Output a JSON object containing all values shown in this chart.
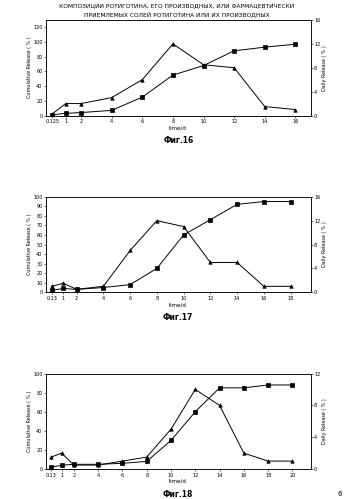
{
  "title_line1": "КОМПОЗИЦИИ РОТИГОТИНА, ЕГО ПРОИЗВОДНЫХ, ИЛИ ФАРМАЦЕВТИЧЕСКИ",
  "title_line2": "ПРИЕМЛЕМЫХ СОЛЕЙ РОТИГОТИНА ИЛИ ИХ ПРОИЗВОДНЫХ",
  "page_number": "6",
  "charts": [
    {
      "fig_label": "Фиг.16",
      "xlabel": "time/d",
      "ylabel_left": "Cumulative Release ( % )",
      "ylabel_right": "Daily Release ( % )",
      "xticks": [
        0.125,
        1,
        2,
        4,
        6,
        8,
        10,
        12,
        14,
        16
      ],
      "xtick_labels": [
        "0.125",
        "1",
        "2",
        "4",
        "6",
        "8",
        "10",
        "12",
        "14",
        "16"
      ],
      "xlim": [
        -0.3,
        17.0
      ],
      "ylim_left": [
        0,
        130
      ],
      "ylim_right": [
        0,
        16
      ],
      "yticks_left": [
        0,
        20,
        40,
        60,
        80,
        100,
        120
      ],
      "yticks_right": [
        0,
        4,
        8,
        12,
        16
      ],
      "cumulative_x": [
        0.125,
        1,
        2,
        4,
        6,
        8,
        10,
        12,
        14,
        16
      ],
      "cumulative_y": [
        1,
        3,
        4,
        7,
        25,
        55,
        68,
        88,
        93,
        97
      ],
      "daily_x": [
        0.125,
        1,
        2,
        4,
        6,
        8,
        10,
        12,
        14,
        16
      ],
      "daily_y": [
        0.3,
        2,
        2,
        3,
        6,
        12,
        8.5,
        8,
        1.5,
        1
      ]
    },
    {
      "fig_label": "Фиг.17",
      "xlabel": "time/d",
      "ylabel_left": "Cumulative Release ( % )",
      "ylabel_right": "Daily Release ( % )",
      "xticks": [
        0.13,
        1,
        2,
        4,
        6,
        8,
        10,
        12,
        14,
        16,
        18
      ],
      "xtick_labels": [
        "0.13",
        "1",
        "2",
        "4",
        "6",
        "8",
        "10",
        "12",
        "14",
        "16",
        "18"
      ],
      "xlim": [
        -0.3,
        19.5
      ],
      "ylim_left": [
        0,
        100
      ],
      "ylim_right": [
        0,
        16
      ],
      "yticks_left": [
        0,
        10,
        20,
        30,
        40,
        50,
        60,
        70,
        80,
        90,
        100
      ],
      "yticks_right": [
        0,
        4,
        8,
        12,
        16
      ],
      "cumulative_x": [
        0.13,
        1,
        2,
        4,
        6,
        8,
        10,
        12,
        14,
        16,
        18
      ],
      "cumulative_y": [
        2,
        4,
        3,
        5,
        8,
        25,
        60,
        76,
        92,
        95,
        95
      ],
      "daily_x": [
        0.13,
        1,
        2,
        4,
        6,
        8,
        10,
        12,
        14,
        16,
        18
      ],
      "daily_y": [
        1,
        1.5,
        0.5,
        1,
        7,
        12,
        11,
        5,
        5,
        1,
        1
      ]
    },
    {
      "fig_label": "Фиг.18",
      "xlabel": "time/d",
      "ylabel_left": "Cumulative Release ( % )",
      "ylabel_right": "Daily Release ( % )",
      "xticks": [
        0.13,
        1,
        2,
        4,
        6,
        8,
        10,
        12,
        14,
        16,
        18,
        20
      ],
      "xtick_labels": [
        "0.13",
        "1",
        "2",
        "4",
        "6",
        "8",
        "10",
        "12",
        "14",
        "16",
        "18",
        "20"
      ],
      "xlim": [
        -0.3,
        21.5
      ],
      "ylim_left": [
        0,
        100
      ],
      "ylim_right": [
        0,
        12
      ],
      "yticks_left": [
        0,
        20,
        40,
        60,
        80,
        100
      ],
      "yticks_right": [
        0,
        4,
        8,
        12
      ],
      "cumulative_x": [
        0.13,
        1,
        2,
        4,
        6,
        8,
        10,
        12,
        14,
        16,
        18,
        20
      ],
      "cumulative_y": [
        2,
        4,
        5,
        5,
        6,
        8,
        30,
        60,
        85,
        85,
        88,
        88
      ],
      "daily_x": [
        0.13,
        1,
        2,
        4,
        6,
        8,
        10,
        12,
        14,
        16,
        18,
        20
      ],
      "daily_y": [
        1.5,
        2,
        0.5,
        0.5,
        1,
        1.5,
        5,
        10,
        8,
        2,
        1,
        1
      ]
    }
  ]
}
